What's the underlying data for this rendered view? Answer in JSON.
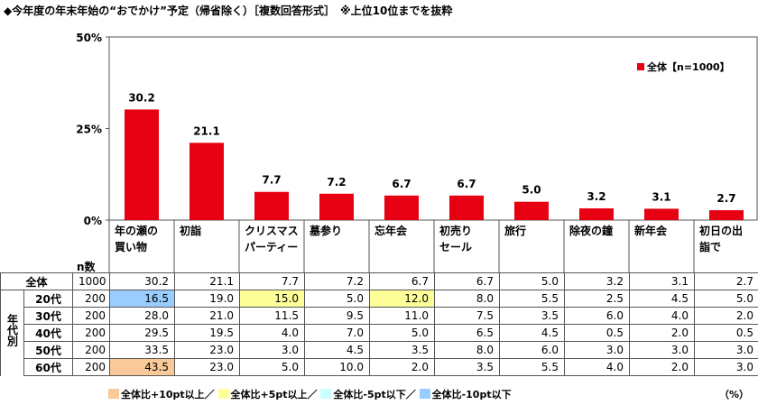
{
  "title": "◆今年度の年末年始の“おでかけ”予定（帰省除く）［複数回答形式］　※上位10位までを抜粋",
  "legend_label": "全体【n=1000】",
  "n_header": "n数",
  "group_label": "年代別",
  "unit": "（%）",
  "footer": {
    "up10": "全体比+10pt以上／",
    "up5": "全体比+5pt以上／",
    "dn5": "全体比-5pt以下／",
    "dn10": "全体比-10pt以下"
  },
  "colors": {
    "bar": "#e60012",
    "up10": "#fac999",
    "up5": "#ffff99",
    "dn5": "#ccffff",
    "dn10": "#99ccff"
  },
  "chart_data": {
    "type": "bar",
    "categories": [
      "年の瀬の買い物",
      "初詣",
      "クリスマスパーティー",
      "墓参り",
      "忘年会",
      "初売りセール",
      "旅行",
      "除夜の鐘",
      "新年会",
      "初日の出詣で"
    ],
    "category_lines": [
      [
        "年の瀬の",
        "買い物"
      ],
      [
        "初詣"
      ],
      [
        "クリスマス",
        "パーティー"
      ],
      [
        "墓参り"
      ],
      [
        "忘年会"
      ],
      [
        "初売り",
        "セール"
      ],
      [
        "旅行"
      ],
      [
        "除夜の鐘"
      ],
      [
        "新年会"
      ],
      [
        "初日の出",
        "詣で"
      ]
    ],
    "series": [
      {
        "name": "全体【n=1000】",
        "values": [
          30.2,
          21.1,
          7.7,
          7.2,
          6.7,
          6.7,
          5.0,
          3.2,
          3.1,
          2.7
        ]
      }
    ],
    "data_labels": [
      "30.2",
      "21.1",
      "7.7",
      "7.2",
      "6.7",
      "6.7",
      "5.0",
      "3.2",
      "3.1",
      "2.7"
    ],
    "ylim": [
      0,
      50
    ],
    "yticks": [
      "0%",
      "25%",
      "50%"
    ],
    "ytick_values": [
      0,
      25,
      50
    ],
    "legend": "top-right",
    "table": {
      "rows": [
        {
          "label": "全体",
          "n": "1000",
          "values": [
            "30.2",
            "21.1",
            "7.7",
            "7.2",
            "6.7",
            "6.7",
            "5.0",
            "3.2",
            "3.1",
            "2.7"
          ],
          "hl": [
            "",
            "",
            "",
            "",
            "",
            "",
            "",
            "",
            "",
            ""
          ]
        },
        {
          "label": "20代",
          "n": "200",
          "values": [
            "16.5",
            "19.0",
            "15.0",
            "5.0",
            "12.0",
            "8.0",
            "5.5",
            "2.5",
            "4.5",
            "5.0"
          ],
          "hl": [
            "dn10",
            "",
            "up5",
            "",
            "up5",
            "",
            "",
            "",
            "",
            ""
          ]
        },
        {
          "label": "30代",
          "n": "200",
          "values": [
            "28.0",
            "21.0",
            "11.5",
            "9.5",
            "11.0",
            "7.5",
            "3.5",
            "6.0",
            "4.0",
            "2.0"
          ],
          "hl": [
            "",
            "",
            "",
            "",
            "",
            "",
            "",
            "",
            "",
            ""
          ]
        },
        {
          "label": "40代",
          "n": "200",
          "values": [
            "29.5",
            "19.5",
            "4.0",
            "7.0",
            "5.0",
            "6.5",
            "4.5",
            "0.5",
            "2.0",
            "0.5"
          ],
          "hl": [
            "",
            "",
            "",
            "",
            "",
            "",
            "",
            "",
            "",
            ""
          ]
        },
        {
          "label": "50代",
          "n": "200",
          "values": [
            "33.5",
            "23.0",
            "3.0",
            "4.5",
            "3.5",
            "8.0",
            "6.0",
            "3.0",
            "3.0",
            "3.0"
          ],
          "hl": [
            "",
            "",
            "",
            "",
            "",
            "",
            "",
            "",
            "",
            ""
          ]
        },
        {
          "label": "60代",
          "n": "200",
          "values": [
            "43.5",
            "23.0",
            "5.0",
            "10.0",
            "2.0",
            "3.5",
            "5.5",
            "4.0",
            "2.0",
            "3.0"
          ],
          "hl": [
            "up10",
            "",
            "",
            "",
            "",
            "",
            "",
            "",
            "",
            ""
          ]
        }
      ]
    }
  }
}
